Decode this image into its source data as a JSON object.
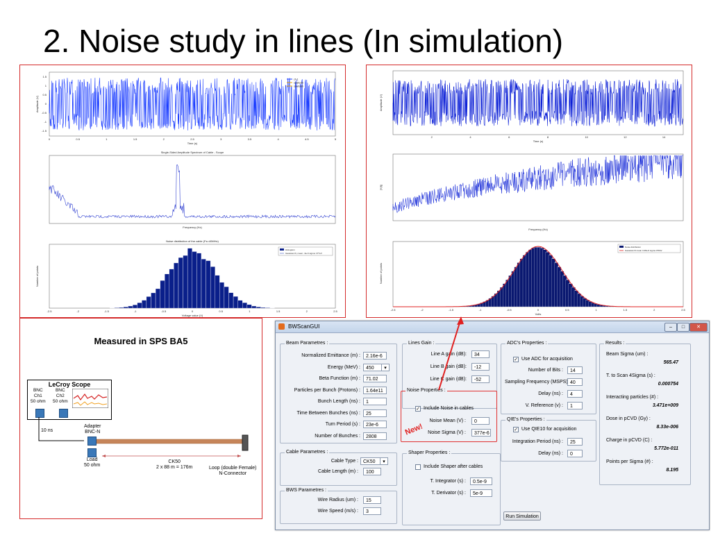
{
  "slide": {
    "title": "2. Noise study in lines (In simulation)"
  },
  "left_plots": {
    "ts_legend": [
      "ch 1",
      "sawtooth",
      "sawtooth"
    ],
    "ts_xlabel": "Time (s)",
    "ts_ylabel": "Amplitude (V)",
    "ts_xticks": [
      "0",
      "0.5",
      "1",
      "1.5",
      "2",
      "2.5",
      "3",
      "3.5",
      "4",
      "4.5",
      "5"
    ],
    "ts_yticks": [
      "1.5",
      "1",
      "0.5",
      "0",
      "-0.5",
      "-1",
      "-1.5"
    ],
    "sp_title": "Single-Sided Amplitude Spectrum of Cable - Scope",
    "sp_xlabel": "Frequency (Hz)",
    "hist_title": "Noise distribution of the cable (Fs=40MHz)",
    "hist_legend": [
      "Histogram",
      "Gaussian fit, mean: -9e-6 sigma: 377uV"
    ],
    "hist_xlabel": "Voltage value (V)",
    "hist_ylabel": "Number of points",
    "hist_xticks": [
      "-2.5",
      "-2",
      "-1.5",
      "-1",
      "-0.5",
      "0",
      "0.5",
      "1",
      "1.5",
      "2",
      "2.5"
    ]
  },
  "right_plots": {
    "ts_xlabel": "Time (s)",
    "ts_ylabel": "Amplitude (V)",
    "ts_xticks": [
      "2",
      "4",
      "6",
      "8",
      "10",
      "12",
      "14"
    ],
    "sp_xlabel": "Frequency (Hz)",
    "sp_ylabel": "|Y(f)|",
    "hist_legend": [
      "Noise distribution",
      "Gaussian fit mean 3.28e-6 sigma 378uV"
    ],
    "hist_xlabel": "Volts",
    "hist_ylabel": "Number of points",
    "hist_xticks": [
      "-2.5",
      "-2",
      "-1.5",
      "-1",
      "-0.5",
      "0",
      "0.5",
      "1",
      "1.5",
      "2",
      "2.5"
    ]
  },
  "measurement": {
    "title": "Measured in SPS BA5",
    "scope_title": "LeCroy Scope",
    "ch1_label": "BNC\nCh1\n50 ohm",
    "ch2_label": "BNC\nCh2\n50 ohm",
    "cable_short": "10 ns",
    "adapter": "Adapter\nBNC-N",
    "load": "Load\n50 ohm",
    "cable_label": "CK50\n2 x 88 m = 176m",
    "loop": "Loop (double Female)\nN-Connector"
  },
  "gui": {
    "title": "BWScanGUI",
    "new_tag": "New!",
    "beam": {
      "group": "Beam Parametres :",
      "fields": [
        {
          "label": "Normalized Emittance (m) :",
          "value": "2.16e-6"
        },
        {
          "label": "Energy (MeV) :",
          "value": "450"
        },
        {
          "label": "Beta Function (m) :",
          "value": "71.02"
        },
        {
          "label": "Particles per Bunch (Protons) :",
          "value": "1.64e11"
        },
        {
          "label": "Bunch Length (ns) :",
          "value": "1"
        },
        {
          "label": "Time Between Bunches (ns) :",
          "value": "25"
        },
        {
          "label": "Turn Period (s) :",
          "value": "23e-6"
        },
        {
          "label": "Number of Bunches :",
          "value": "2808"
        }
      ]
    },
    "cable": {
      "group": "Cable Parametres :",
      "type_label": "Cable Type :",
      "type_value": "CK50",
      "length_label": "Cable Length (m) :",
      "length_value": "100"
    },
    "bws": {
      "group": "BWS Parametres :",
      "radius_label": "Wire Radius (um) :",
      "radius_value": "15",
      "speed_label": "Wire Speed (m/s) :",
      "speed_value": "3"
    },
    "lines": {
      "group": "Lines Gain :",
      "a_label": "Line A gain (dB):",
      "a_value": "34",
      "b_label": "Line B gain (dB):",
      "b_value": "-12",
      "c_label": "Line C gain (dB):",
      "c_value": "-52"
    },
    "noise": {
      "group": "Noise Properties :",
      "include": "Include Noise in cables",
      "check": "✓",
      "mean_label": "Noise Mean (V) :",
      "mean_value": "0",
      "sigma_label": "Noise Sigma (V) :",
      "sigma_value": "377e-6"
    },
    "shaper": {
      "group": "Shaper Properties :",
      "include": "Include Shaper after cables",
      "int_label": "T. Integrator (s) :",
      "int_value": "0.5e-9",
      "der_label": "T. Derivator (s) :",
      "der_value": "5e-9"
    },
    "adc": {
      "group": "ADC's Properties :",
      "use": "Use ADC for acquisition",
      "check": "✓",
      "bits_label": "Number of Bits :",
      "bits_value": "14",
      "fs_label": "Sampling Frequency (MSPS) :",
      "fs_value": "40",
      "delay_label": "Delay (ns) :",
      "delay_value": "4",
      "vref_label": "V. Reference (v) :",
      "vref_value": "1"
    },
    "qie": {
      "group": "QIE's Properties :",
      "use": "Use QIE10 for acquisition",
      "check": "✓",
      "int_label": "Integration Period (ns) :",
      "int_value": "25",
      "delay_label": "Delay (ns) :",
      "delay_value": "0"
    },
    "results": {
      "group": "Results :",
      "items": [
        {
          "label": "Beam Sigma (um) :",
          "value": "565.47"
        },
        {
          "label": "T. to Scan 4Sigma (s) :",
          "value": "0.000754"
        },
        {
          "label": "Interacting particles (#) :",
          "value": "3.471e+009"
        },
        {
          "label": "Dose in pCVD (Gy) :",
          "value": "8.33e-006"
        },
        {
          "label": "Charge in pCVD (C) :",
          "value": "5.772e-011"
        },
        {
          "label": "Points per Sigma (#) :",
          "value": "8.195"
        }
      ]
    },
    "run_button": "Run Simulation"
  }
}
